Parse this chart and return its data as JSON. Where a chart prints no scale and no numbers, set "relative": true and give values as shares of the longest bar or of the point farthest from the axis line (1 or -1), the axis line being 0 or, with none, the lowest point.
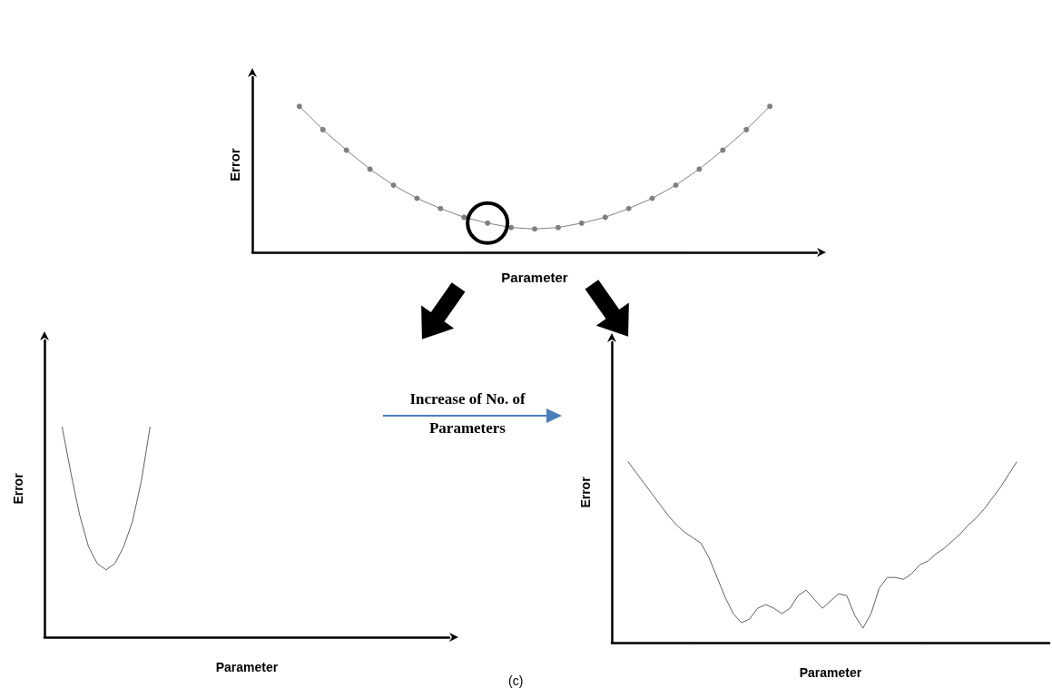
{
  "chart_data": [
    {
      "type": "line",
      "relative": true,
      "xlabel": "Parameter",
      "ylabel": "Error",
      "marker": "circle",
      "categories": [
        null,
        null,
        null,
        null,
        null,
        null,
        null,
        null,
        null,
        null,
        null,
        null,
        null,
        null,
        null,
        null,
        null,
        null,
        null,
        null,
        null,
        null,
        null,
        null,
        null
      ],
      "series": [
        {
          "color": "#808080",
          "values": [
            null,
            null,
            1,
            0.84,
            0.7,
            0.57,
            0.46,
            0.37,
            0.3,
            0.24,
            0.2,
            0.17,
            0.16,
            0.17,
            0.2,
            0.24,
            0.3,
            0.37,
            0.46,
            0.57,
            0.7,
            0.84,
            1,
            null,
            null
          ]
        }
      ]
    },
    {
      "type": "line",
      "relative": true,
      "xlabel": "Parameter",
      "ylabel": "Error",
      "categories": [
        null,
        null,
        null,
        null,
        null,
        null,
        null,
        null,
        null,
        null,
        null,
        null,
        null,
        null,
        null,
        null,
        null,
        null,
        null,
        null,
        null,
        null,
        null,
        null,
        null,
        null,
        null,
        null,
        null,
        null,
        null,
        null,
        null,
        null,
        null,
        null,
        null,
        null,
        null,
        null,
        null,
        null,
        null,
        null,
        null,
        null,
        null
      ],
      "series": [
        {
          "color": "#606060",
          "values": [
            null,
            null,
            1,
            0.78,
            0.58,
            0.43,
            0.35,
            0.32,
            0.35,
            0.43,
            0.55,
            0.74,
            1,
            null,
            null,
            null,
            null,
            null,
            null,
            null,
            null,
            null,
            null,
            null,
            null,
            null,
            null,
            null,
            null,
            null,
            null,
            null,
            null,
            null,
            null,
            null,
            null,
            null,
            null,
            null,
            null,
            null,
            null,
            null,
            null,
            null,
            null
          ]
        }
      ],
      "annotations": [
        "Increase of No. of Parameters",
        "(c)"
      ]
    },
    {
      "type": "line",
      "relative": true,
      "xlabel": "Parameter",
      "ylabel": "Error",
      "categories": [
        null,
        null,
        null,
        null,
        null,
        null,
        null,
        null,
        null,
        null,
        null,
        null,
        null,
        null,
        null,
        null,
        null,
        null,
        null,
        null,
        null,
        null,
        null,
        null,
        null,
        null,
        null,
        null,
        null,
        null,
        null,
        null,
        null,
        null,
        null,
        null,
        null,
        null,
        null,
        null,
        null,
        null,
        null,
        null,
        null,
        null,
        null,
        null,
        null,
        null,
        null,
        null,
        null,
        null,
        null
      ],
      "series": [
        {
          "color": "#606060",
          "values": [
            null,
            null,
            1,
            0.94,
            0.88,
            0.82,
            0.76,
            0.7,
            0.65,
            0.61,
            0.58,
            0.55,
            0.47,
            0.36,
            0.25,
            0.16,
            0.11,
            0.13,
            0.19,
            0.21,
            0.19,
            0.16,
            0.19,
            0.26,
            0.29,
            0.24,
            0.19,
            0.23,
            0.27,
            0.26,
            0.15,
            0.08,
            0.16,
            0.3,
            0.36,
            0.36,
            0.35,
            0.38,
            0.43,
            0.45,
            0.49,
            0.52,
            0.56,
            0.6,
            0.65,
            0.69,
            0.74,
            0.8,
            0.86,
            0.93,
            1,
            null,
            null,
            null,
            null
          ]
        }
      ]
    }
  ]
}
